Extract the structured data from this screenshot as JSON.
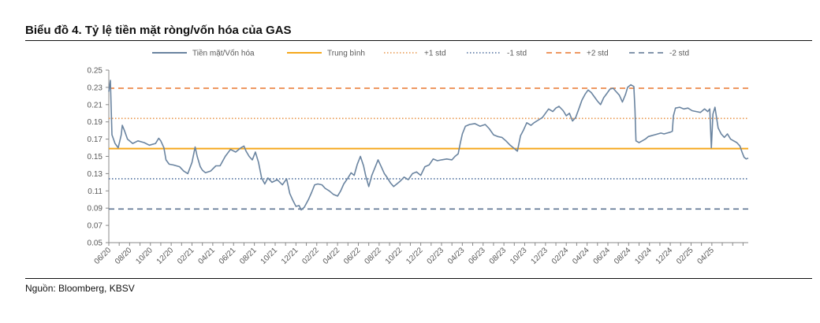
{
  "title": "Biểu đồ 4. Tỷ lệ tiền mặt ròng/vốn hóa của GAS",
  "source": "Nguồn: Bloomberg, KBSV",
  "colors": {
    "series": "#6a84a0",
    "mean": "#f5a81d",
    "std1_upper": "#e8954a",
    "std1_lower": "#4f6f9e",
    "std2_upper": "#e8772e",
    "std2_lower": "#5c7391",
    "axis": "#888888",
    "text": "#595959"
  },
  "chart_data": {
    "type": "line",
    "legend": {
      "placement": "top",
      "items": [
        {
          "key": "series",
          "label": "Tiền mặt/Vốn hóa",
          "style": "solid"
        },
        {
          "key": "mean",
          "label": "Trung bình",
          "style": "solid"
        },
        {
          "key": "std1_upper",
          "label": "+1 std",
          "style": "dotted"
        },
        {
          "key": "std1_lower",
          "label": "-1 std",
          "style": "dotted"
        },
        {
          "key": "std2_upper",
          "label": "+2 std",
          "style": "dashed"
        },
        {
          "key": "std2_lower",
          "label": "-2 std",
          "style": "dashed"
        }
      ]
    },
    "ylim": [
      0.05,
      0.25
    ],
    "yticks": [
      "0.25",
      "0.23",
      "0.21",
      "0.19",
      "0.17",
      "0.15",
      "0.13",
      "0.11",
      "0.09",
      "0.07",
      "0.05"
    ],
    "xticks": [
      "06/20",
      "08/20",
      "10/20",
      "12/20",
      "02/21",
      "04/21",
      "06/21",
      "08/21",
      "10/21",
      "12/21",
      "02/22",
      "04/22",
      "06/22",
      "08/22",
      "10/22",
      "12/22",
      "02/23",
      "04/23",
      "06/23",
      "08/23",
      "10/23",
      "12/23",
      "02/24",
      "04/24",
      "06/24",
      "08/24",
      "10/24",
      "12/24",
      "02/25",
      "04/25"
    ],
    "xrange_months": [
      0,
      61.5
    ],
    "reference_lines": {
      "mean": 0.159,
      "std1_upper": 0.194,
      "std1_lower": 0.124,
      "std2_upper": 0.229,
      "std2_lower": 0.089
    },
    "series": {
      "name": "Tiền mặt/Vốn hóa",
      "points": [
        [
          0,
          0.225
        ],
        [
          0.15,
          0.238
        ],
        [
          0.3,
          0.175
        ],
        [
          0.6,
          0.165
        ],
        [
          0.9,
          0.16
        ],
        [
          1.2,
          0.175
        ],
        [
          1.3,
          0.186
        ],
        [
          1.5,
          0.18
        ],
        [
          1.8,
          0.17
        ],
        [
          2.3,
          0.165
        ],
        [
          2.8,
          0.168
        ],
        [
          3.4,
          0.166
        ],
        [
          3.9,
          0.163
        ],
        [
          4.5,
          0.165
        ],
        [
          4.8,
          0.171
        ],
        [
          5.0,
          0.168
        ],
        [
          5.3,
          0.16
        ],
        [
          5.5,
          0.146
        ],
        [
          5.8,
          0.141
        ],
        [
          6.2,
          0.14
        ],
        [
          6.8,
          0.138
        ],
        [
          7.2,
          0.133
        ],
        [
          7.6,
          0.13
        ],
        [
          8.0,
          0.143
        ],
        [
          8.3,
          0.161
        ],
        [
          8.5,
          0.15
        ],
        [
          8.8,
          0.138
        ],
        [
          9.0,
          0.134
        ],
        [
          9.3,
          0.131
        ],
        [
          9.8,
          0.133
        ],
        [
          10.3,
          0.139
        ],
        [
          10.7,
          0.139
        ],
        [
          11.2,
          0.15
        ],
        [
          11.7,
          0.158
        ],
        [
          12.2,
          0.155
        ],
        [
          12.7,
          0.16
        ],
        [
          13.0,
          0.162
        ],
        [
          13.2,
          0.156
        ],
        [
          13.5,
          0.15
        ],
        [
          13.8,
          0.146
        ],
        [
          14.1,
          0.155
        ],
        [
          14.4,
          0.143
        ],
        [
          14.7,
          0.125
        ],
        [
          15.0,
          0.118
        ],
        [
          15.3,
          0.125
        ],
        [
          15.7,
          0.12
        ],
        [
          16.2,
          0.123
        ],
        [
          16.7,
          0.117
        ],
        [
          17.1,
          0.124
        ],
        [
          17.4,
          0.107
        ],
        [
          17.7,
          0.099
        ],
        [
          18.0,
          0.092
        ],
        [
          18.3,
          0.093
        ],
        [
          18.5,
          0.088
        ],
        [
          18.8,
          0.091
        ],
        [
          19.2,
          0.1
        ],
        [
          19.5,
          0.108
        ],
        [
          19.8,
          0.117
        ],
        [
          20.1,
          0.118
        ],
        [
          20.5,
          0.117
        ],
        [
          20.8,
          0.113
        ],
        [
          21.2,
          0.11
        ],
        [
          21.6,
          0.106
        ],
        [
          22.0,
          0.104
        ],
        [
          22.3,
          0.11
        ],
        [
          22.6,
          0.118
        ],
        [
          23.0,
          0.125
        ],
        [
          23.3,
          0.131
        ],
        [
          23.6,
          0.128
        ],
        [
          23.9,
          0.141
        ],
        [
          24.2,
          0.15
        ],
        [
          24.5,
          0.139
        ],
        [
          24.7,
          0.128
        ],
        [
          25.0,
          0.115
        ],
        [
          25.3,
          0.128
        ],
        [
          25.6,
          0.137
        ],
        [
          25.9,
          0.146
        ],
        [
          26.2,
          0.138
        ],
        [
          26.5,
          0.13
        ],
        [
          26.8,
          0.125
        ],
        [
          27.1,
          0.119
        ],
        [
          27.4,
          0.115
        ],
        [
          27.7,
          0.118
        ],
        [
          28.0,
          0.121
        ],
        [
          28.4,
          0.126
        ],
        [
          28.8,
          0.123
        ],
        [
          29.2,
          0.13
        ],
        [
          29.6,
          0.132
        ],
        [
          30.0,
          0.128
        ],
        [
          30.4,
          0.138
        ],
        [
          30.8,
          0.14
        ],
        [
          31.2,
          0.147
        ],
        [
          31.6,
          0.145
        ],
        [
          32.0,
          0.146
        ],
        [
          32.5,
          0.147
        ],
        [
          33.0,
          0.146
        ],
        [
          33.3,
          0.15
        ],
        [
          33.6,
          0.153
        ],
        [
          33.8,
          0.165
        ],
        [
          34.0,
          0.176
        ],
        [
          34.3,
          0.185
        ],
        [
          34.7,
          0.187
        ],
        [
          35.2,
          0.188
        ],
        [
          35.7,
          0.185
        ],
        [
          36.2,
          0.187
        ],
        [
          36.6,
          0.182
        ],
        [
          37.0,
          0.175
        ],
        [
          37.4,
          0.173
        ],
        [
          37.8,
          0.172
        ],
        [
          38.2,
          0.168
        ],
        [
          38.6,
          0.163
        ],
        [
          39.0,
          0.159
        ],
        [
          39.3,
          0.156
        ],
        [
          39.6,
          0.174
        ],
        [
          39.9,
          0.181
        ],
        [
          40.2,
          0.189
        ],
        [
          40.6,
          0.186
        ],
        [
          40.9,
          0.189
        ],
        [
          41.3,
          0.192
        ],
        [
          41.7,
          0.195
        ],
        [
          42.0,
          0.2
        ],
        [
          42.3,
          0.205
        ],
        [
          42.7,
          0.202
        ],
        [
          43.0,
          0.206
        ],
        [
          43.3,
          0.208
        ],
        [
          43.7,
          0.203
        ],
        [
          44.0,
          0.197
        ],
        [
          44.3,
          0.2
        ],
        [
          44.6,
          0.191
        ],
        [
          44.9,
          0.195
        ],
        [
          45.2,
          0.205
        ],
        [
          45.5,
          0.215
        ],
        [
          45.8,
          0.222
        ],
        [
          46.1,
          0.227
        ],
        [
          46.4,
          0.224
        ],
        [
          46.7,
          0.219
        ],
        [
          47.0,
          0.214
        ],
        [
          47.3,
          0.21
        ],
        [
          47.6,
          0.218
        ],
        [
          47.9,
          0.223
        ],
        [
          48.2,
          0.228
        ],
        [
          48.5,
          0.229
        ],
        [
          48.8,
          0.225
        ],
        [
          49.1,
          0.221
        ],
        [
          49.4,
          0.213
        ],
        [
          49.7,
          0.222
        ],
        [
          49.9,
          0.23
        ],
        [
          50.2,
          0.233
        ],
        [
          50.5,
          0.231
        ],
        [
          50.6,
          0.205
        ],
        [
          50.7,
          0.168
        ],
        [
          51.0,
          0.166
        ],
        [
          51.3,
          0.168
        ],
        [
          51.6,
          0.17
        ],
        [
          51.9,
          0.173
        ],
        [
          52.2,
          0.174
        ],
        [
          52.5,
          0.175
        ],
        [
          52.8,
          0.176
        ],
        [
          53.1,
          0.177
        ],
        [
          53.4,
          0.176
        ],
        [
          53.7,
          0.177
        ],
        [
          54.0,
          0.178
        ],
        [
          54.2,
          0.179
        ],
        [
          54.3,
          0.197
        ],
        [
          54.5,
          0.206
        ],
        [
          54.9,
          0.207
        ],
        [
          55.3,
          0.205
        ],
        [
          55.7,
          0.206
        ],
        [
          56.1,
          0.203
        ],
        [
          56.5,
          0.202
        ],
        [
          56.9,
          0.201
        ],
        [
          57.3,
          0.205
        ],
        [
          57.6,
          0.202
        ],
        [
          57.8,
          0.205
        ],
        [
          57.95,
          0.16
        ],
        [
          58.1,
          0.199
        ],
        [
          58.3,
          0.207
        ],
        [
          58.6,
          0.183
        ],
        [
          58.9,
          0.176
        ],
        [
          59.2,
          0.172
        ],
        [
          59.5,
          0.176
        ],
        [
          59.8,
          0.17
        ],
        [
          60.1,
          0.168
        ],
        [
          60.4,
          0.166
        ],
        [
          60.7,
          0.162
        ],
        [
          60.9,
          0.155
        ],
        [
          61.1,
          0.149
        ],
        [
          61.3,
          0.147
        ],
        [
          61.5,
          0.148
        ]
      ]
    }
  }
}
